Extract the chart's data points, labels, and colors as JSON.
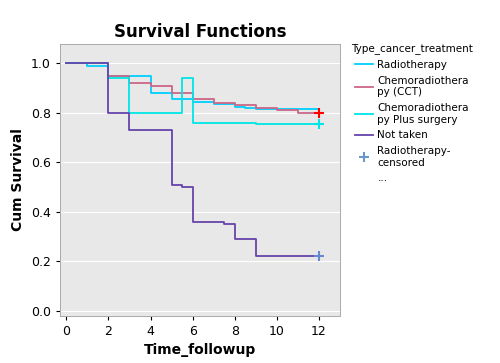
{
  "title": "Survival Functions",
  "xlabel": "Time_followup",
  "ylabel": "Cum Survival",
  "legend_title": "Type_cancer_treatment",
  "xlim": [
    -0.3,
    13.0
  ],
  "ylim": [
    -0.02,
    1.08
  ],
  "xticks": [
    0,
    2,
    4,
    6,
    8,
    10,
    12
  ],
  "yticks": [
    0.0,
    0.2,
    0.4,
    0.6,
    0.8,
    1.0
  ],
  "radiotherapy": {
    "x": [
      0,
      1.0,
      2.0,
      4.0,
      5.0,
      6.0,
      7.0,
      8.0,
      8.5,
      9.0,
      12.0
    ],
    "y": [
      1.0,
      0.99,
      0.95,
      0.88,
      0.855,
      0.845,
      0.835,
      0.825,
      0.82,
      0.815,
      0.815
    ],
    "color": "#00CFFF",
    "censored_x": [],
    "censored_y": [],
    "label": "Radiotherapy"
  },
  "chemo_cct": {
    "x": [
      0,
      2.0,
      3.0,
      4.0,
      5.0,
      6.0,
      7.0,
      8.0,
      9.0,
      10.0,
      11.0,
      12.0
    ],
    "y": [
      1.0,
      0.95,
      0.92,
      0.91,
      0.88,
      0.855,
      0.84,
      0.83,
      0.82,
      0.81,
      0.8,
      0.8
    ],
    "color": "#CC6688",
    "censored_x": [
      12.0
    ],
    "censored_y": [
      0.8
    ],
    "censored_color": "red",
    "label": "Chemoradiothera\npy (CCT)"
  },
  "chemo_plus": {
    "x": [
      0,
      2.0,
      3.0,
      5.5,
      6.0,
      9.0,
      12.0
    ],
    "y": [
      1.0,
      0.94,
      0.8,
      0.94,
      0.76,
      0.755,
      0.755
    ],
    "color": "#00E5E5",
    "censored_x": [
      12.0
    ],
    "censored_y": [
      0.755
    ],
    "censored_color": "#00E5E5",
    "label": "Chemoradiothera\npy Plus surgery"
  },
  "not_taken": {
    "x": [
      0,
      2.0,
      3.0,
      5.0,
      5.5,
      6.0,
      7.5,
      8.0,
      8.5,
      9.0,
      10.0,
      12.0
    ],
    "y": [
      1.0,
      0.8,
      0.73,
      0.51,
      0.5,
      0.36,
      0.35,
      0.29,
      0.29,
      0.22,
      0.22,
      0.22
    ],
    "color": "#6644AA",
    "censored_x": [
      12.0
    ],
    "censored_y": [
      0.22
    ],
    "censored_color": "#6688CC",
    "label": "Not taken"
  },
  "bg_color": "#ffffff",
  "plot_bg": "#e8e8e8",
  "grid_color": "#ffffff",
  "title_fontsize": 12,
  "label_fontsize": 10,
  "tick_fontsize": 9,
  "legend_fontsize": 7.5,
  "legend_title_fontsize": 7.5
}
